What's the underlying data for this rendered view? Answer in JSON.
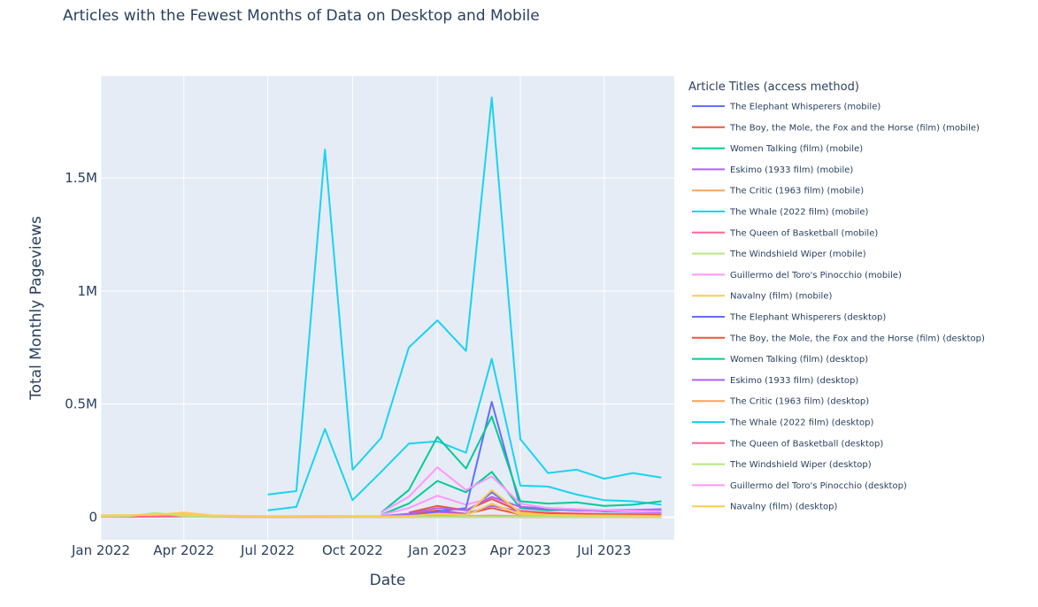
{
  "chart_data": {
    "type": "line",
    "title": "Articles with the Fewest Months of Data on Desktop and Mobile",
    "xlabel": "Date",
    "ylabel": "Total Monthly Pageviews",
    "x_tick_labels": [
      "Jan 2022",
      "Apr 2022",
      "Jul 2022",
      "Oct 2022",
      "Jan 2023",
      "Apr 2023",
      "Jul 2023"
    ],
    "y_tick_labels": [
      "0",
      "0.5M",
      "1M",
      "1.5M"
    ],
    "y_ticks": [
      0,
      500000,
      1000000,
      1500000
    ],
    "ylim": [
      -100000,
      1950000
    ],
    "xlim": [
      "2022-01-01",
      "2023-09-15"
    ],
    "legend_title": "Article Titles (access method)",
    "legend_position": "right",
    "grid": true,
    "dates": [
      "2022-01-01",
      "2022-02-01",
      "2022-03-01",
      "2022-04-01",
      "2022-05-01",
      "2022-06-01",
      "2022-07-01",
      "2022-08-01",
      "2022-09-01",
      "2022-10-01",
      "2022-11-01",
      "2022-12-01",
      "2023-01-01",
      "2023-02-01",
      "2023-03-01",
      "2023-04-01",
      "2023-05-01",
      "2023-06-01",
      "2023-07-01",
      "2023-08-01",
      "2023-09-01"
    ],
    "series": [
      {
        "name": "The Elephant Whisperers (mobile)",
        "color": "#636efa",
        "values": [
          null,
          null,
          null,
          null,
          null,
          null,
          null,
          null,
          null,
          null,
          null,
          5000,
          25000,
          40000,
          510000,
          45000,
          35000,
          30000,
          28000,
          27000,
          26000
        ]
      },
      {
        "name": "The Boy, the Mole, the Fox and the Horse (film) (mobile)",
        "color": "#EF553B",
        "values": [
          null,
          null,
          null,
          null,
          null,
          null,
          null,
          null,
          null,
          null,
          null,
          20000,
          50000,
          30000,
          80000,
          25000,
          18000,
          15000,
          13000,
          12000,
          11000
        ]
      },
      {
        "name": "Women Talking (film) (mobile)",
        "color": "#00cc96",
        "values": [
          null,
          null,
          null,
          null,
          null,
          null,
          null,
          null,
          null,
          null,
          20000,
          120000,
          355000,
          215000,
          445000,
          70000,
          60000,
          65000,
          50000,
          55000,
          70000
        ]
      },
      {
        "name": "Eskimo (1933 film) (mobile)",
        "color": "#ab63fa",
        "values": [
          null,
          null,
          null,
          null,
          null,
          null,
          null,
          null,
          null,
          null,
          5000,
          15000,
          40000,
          30000,
          90000,
          45000,
          40000,
          35000,
          30000,
          32000,
          35000
        ]
      },
      {
        "name": "The Critic (1963 film) (mobile)",
        "color": "#FFA15A",
        "values": [
          2000,
          2500,
          3000,
          4000,
          3000,
          2500,
          2000,
          3000,
          4000,
          3000,
          3000,
          4000,
          5000,
          4000,
          6000,
          4000,
          3000,
          3000,
          2500,
          2500,
          2500
        ]
      },
      {
        "name": "The Whale (2022 film) (mobile)",
        "color": "#19d3f3",
        "values": [
          null,
          null,
          null,
          null,
          null,
          null,
          100000,
          115000,
          1625000,
          210000,
          350000,
          750000,
          870000,
          735000,
          1855000,
          345000,
          195000,
          210000,
          170000,
          195000,
          175000
        ]
      },
      {
        "name": "The Queen of Basketball (mobile)",
        "color": "#FF6692",
        "values": [
          2000,
          2000,
          3000,
          4000,
          2000,
          1500,
          1500,
          1500,
          1500,
          1500,
          1500,
          1500,
          2000,
          1500,
          2000,
          1500,
          1500,
          1500,
          1500,
          1500,
          1500
        ]
      },
      {
        "name": "The Windshield Wiper (mobile)",
        "color": "#B6E880",
        "values": [
          3000,
          5000,
          18000,
          5000,
          3000,
          2000,
          2000,
          2000,
          2000,
          1500,
          1500,
          1500,
          1500,
          1500,
          1500,
          1500,
          1500,
          1500,
          1500,
          1500,
          1500
        ]
      },
      {
        "name": "Guillermo del Toro's Pinocchio (mobile)",
        "color": "#FF97FF",
        "values": [
          null,
          null,
          null,
          null,
          null,
          null,
          null,
          null,
          null,
          null,
          20000,
          90000,
          220000,
          120000,
          180000,
          60000,
          40000,
          35000,
          30000,
          28000,
          25000
        ]
      },
      {
        "name": "Navalny (film) (mobile)",
        "color": "#FECB52",
        "values": [
          8000,
          9000,
          10000,
          20000,
          8000,
          6000,
          5000,
          5000,
          5000,
          4000,
          4000,
          5000,
          15000,
          10000,
          120000,
          20000,
          10000,
          8000,
          7000,
          6000,
          5000
        ]
      },
      {
        "name": "The Elephant Whisperers (desktop)",
        "color": "#636efa",
        "values": [
          null,
          null,
          null,
          null,
          null,
          null,
          null,
          null,
          null,
          null,
          null,
          2000,
          10000,
          15000,
          110000,
          20000,
          15000,
          12000,
          10000,
          10000,
          10000
        ]
      },
      {
        "name": "The Boy, the Mole, the Fox and the Horse (film) (desktop)",
        "color": "#EF553B",
        "values": [
          null,
          null,
          null,
          null,
          null,
          null,
          null,
          null,
          null,
          null,
          null,
          10000,
          30000,
          15000,
          40000,
          12000,
          9000,
          8000,
          7000,
          6000,
          6000
        ]
      },
      {
        "name": "Women Talking (film) (desktop)",
        "color": "#00cc96",
        "values": [
          null,
          null,
          null,
          null,
          null,
          null,
          null,
          null,
          null,
          null,
          10000,
          60000,
          160000,
          110000,
          200000,
          40000,
          30000,
          35000,
          25000,
          28000,
          35000
        ]
      },
      {
        "name": "Eskimo (1933 film) (desktop)",
        "color": "#ab63fa",
        "values": [
          null,
          null,
          null,
          null,
          null,
          null,
          null,
          null,
          null,
          null,
          3000,
          8000,
          20000,
          15000,
          50000,
          25000,
          20000,
          18000,
          15000,
          16000,
          17000
        ]
      },
      {
        "name": "The Critic (1963 film) (desktop)",
        "color": "#FFA15A",
        "values": [
          3000,
          3000,
          4000,
          5000,
          3000,
          3000,
          3000,
          4000,
          5000,
          4000,
          4000,
          5000,
          6000,
          5000,
          7000,
          5000,
          4000,
          4000,
          3500,
          3500,
          3500
        ]
      },
      {
        "name": "The Whale (2022 film) (desktop)",
        "color": "#19d3f3",
        "values": [
          null,
          null,
          null,
          null,
          null,
          null,
          30000,
          45000,
          390000,
          75000,
          200000,
          325000,
          335000,
          285000,
          700000,
          140000,
          135000,
          100000,
          75000,
          70000,
          55000
        ]
      },
      {
        "name": "The Queen of Basketball (desktop)",
        "color": "#FF6692",
        "values": [
          1500,
          1500,
          2000,
          3000,
          1500,
          1000,
          1000,
          1000,
          1000,
          1000,
          1000,
          1000,
          1500,
          1000,
          1500,
          1000,
          1000,
          1000,
          1000,
          1000,
          1000
        ]
      },
      {
        "name": "The Windshield Wiper (desktop)",
        "color": "#B6E880",
        "values": [
          2000,
          3000,
          8000,
          3000,
          2000,
          1500,
          1500,
          1500,
          1500,
          1000,
          1000,
          1000,
          1000,
          1000,
          1000,
          1000,
          1000,
          1000,
          1000,
          1000,
          1000
        ]
      },
      {
        "name": "Guillermo del Toro's Pinocchio (desktop)",
        "color": "#FF97FF",
        "values": [
          null,
          null,
          null,
          null,
          null,
          null,
          null,
          null,
          null,
          null,
          10000,
          40000,
          95000,
          55000,
          85000,
          30000,
          20000,
          18000,
          15000,
          14000,
          13000
        ]
      },
      {
        "name": "Navalny (film) (desktop)",
        "color": "#FECB52",
        "values": [
          5000,
          6000,
          7000,
          12000,
          5000,
          4000,
          3000,
          3000,
          3000,
          2500,
          2500,
          3000,
          8000,
          6000,
          60000,
          12000,
          6000,
          5000,
          4000,
          4000,
          3500
        ]
      }
    ]
  }
}
